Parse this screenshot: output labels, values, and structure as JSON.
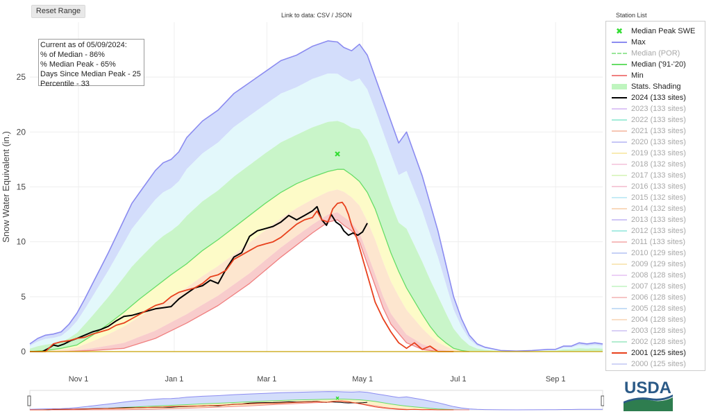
{
  "controls": {
    "reset_label": "Reset Range",
    "data_link": "Link to data: CSV / JSON"
  },
  "stats": {
    "line1": "Current as of 05/09/2024:",
    "line2": "% of Median - 86%",
    "line3": "% Median Peak - 65%",
    "line4": "Days Since Median Peak - 25",
    "line5": "Percentile - 33"
  },
  "legend": {
    "title": "Station List",
    "items": [
      {
        "label": "Median Peak SWE",
        "color": "#33dd33",
        "style": "marker",
        "active": true
      },
      {
        "label": "Max",
        "color": "#8b8bf0",
        "style": "line",
        "active": true
      },
      {
        "label": "Median (POR)",
        "color": "#99e699",
        "style": "dash",
        "active": false
      },
      {
        "label": "Median ('91-'20)",
        "color": "#66dd66",
        "style": "line",
        "active": true
      },
      {
        "label": "Min",
        "color": "#f08080",
        "style": "line",
        "active": true
      },
      {
        "label": "Stats. Shading",
        "color": "#bff5bf",
        "style": "fill",
        "active": true
      },
      {
        "label": "2024 (133 sites)",
        "color": "#000000",
        "style": "bold",
        "active": true
      },
      {
        "label": "2023 (133 sites)",
        "color": "#c8a0f0",
        "style": "line",
        "active": false
      },
      {
        "label": "2022 (133 sites)",
        "color": "#66e0c0",
        "style": "line",
        "active": false
      },
      {
        "label": "2021 (133 sites)",
        "color": "#f0a080",
        "style": "line",
        "active": false
      },
      {
        "label": "2020 (133 sites)",
        "color": "#a0a0f0",
        "style": "line",
        "active": false
      },
      {
        "label": "2019 (133 sites)",
        "color": "#f5e080",
        "style": "line",
        "active": false
      },
      {
        "label": "2018 (132 sites)",
        "color": "#f0b0d0",
        "style": "line",
        "active": false
      },
      {
        "label": "2017 (133 sites)",
        "color": "#c8f0a0",
        "style": "line",
        "active": false
      },
      {
        "label": "2016 (133 sites)",
        "color": "#f0a8c0",
        "style": "line",
        "active": false
      },
      {
        "label": "2015 (132 sites)",
        "color": "#a0e0f0",
        "style": "line",
        "active": false
      },
      {
        "label": "2014 (132 sites)",
        "color": "#f5c090",
        "style": "line",
        "active": false
      },
      {
        "label": "2013 (133 sites)",
        "color": "#b0a0f0",
        "style": "line",
        "active": false
      },
      {
        "label": "2012 (133 sites)",
        "color": "#70e0d0",
        "style": "line",
        "active": false
      },
      {
        "label": "2011 (133 sites)",
        "color": "#f09090",
        "style": "line",
        "active": false
      },
      {
        "label": "2010 (129 sites)",
        "color": "#a0b0f0",
        "style": "line",
        "active": false
      },
      {
        "label": "2009 (129 sites)",
        "color": "#f5d890",
        "style": "line",
        "active": false
      },
      {
        "label": "2008 (128 sites)",
        "color": "#e0b0f0",
        "style": "line",
        "active": false
      },
      {
        "label": "2007 (128 sites)",
        "color": "#b0f0b0",
        "style": "line",
        "active": false
      },
      {
        "label": "2006 (128 sites)",
        "color": "#f0a0a0",
        "style": "line",
        "active": false
      },
      {
        "label": "2005 (128 sites)",
        "color": "#a0c8f0",
        "style": "line",
        "active": false
      },
      {
        "label": "2004 (128 sites)",
        "color": "#f5c8a0",
        "style": "line",
        "active": false
      },
      {
        "label": "2003 (128 sites)",
        "color": "#c0b0f0",
        "style": "line",
        "active": false
      },
      {
        "label": "2002 (128 sites)",
        "color": "#80e0b0",
        "style": "line",
        "active": false
      },
      {
        "label": "2001 (125 sites)",
        "color": "#e8401c",
        "style": "bold",
        "active": true
      },
      {
        "label": "2000 (125 sites)",
        "color": "#b0b8f0",
        "style": "line",
        "active": false
      }
    ]
  },
  "chart_data": {
    "type": "line",
    "ylabel": "Snow Water Equivalent (in.)",
    "ylim": [
      0,
      30
    ],
    "yticks": [
      0,
      5,
      10,
      15,
      20,
      25
    ],
    "xlim_day": [
      0,
      365
    ],
    "x_ticks": [
      {
        "day": 31,
        "label": "Nov 1"
      },
      {
        "day": 92,
        "label": "Jan 1"
      },
      {
        "day": 151,
        "label": "Mar 1"
      },
      {
        "day": 212,
        "label": "May 1"
      },
      {
        "day": 273,
        "label": "Jul 1"
      },
      {
        "day": 335,
        "label": "Sep 1"
      }
    ],
    "x_unit": "day of water year (Oct 1 = 0)",
    "median_peak": {
      "day": 196,
      "swe": 18.0,
      "color": "#33dd33"
    },
    "series": [
      {
        "name": "Max",
        "color": "#8b8bf0",
        "x": [
          0,
          5,
          10,
          15,
          20,
          25,
          30,
          35,
          40,
          45,
          50,
          55,
          60,
          65,
          70,
          75,
          80,
          85,
          90,
          95,
          100,
          110,
          120,
          130,
          140,
          150,
          160,
          170,
          180,
          190,
          196,
          200,
          205,
          210,
          215,
          220,
          225,
          230,
          235,
          240,
          245,
          250,
          255,
          260,
          265,
          270,
          275,
          280,
          285,
          290,
          300,
          310,
          320,
          330,
          335,
          340,
          345,
          350,
          355,
          360,
          365
        ],
        "y": [
          0.7,
          1.2,
          1.5,
          1.6,
          1.8,
          2.5,
          3.5,
          4.8,
          6.2,
          7.6,
          9.0,
          10.5,
          12,
          13.5,
          14.5,
          15.5,
          16.5,
          17.2,
          17.5,
          18.2,
          19.5,
          21.0,
          22.0,
          23.5,
          24.5,
          25.5,
          26.5,
          27.0,
          27.8,
          28.3,
          28.2,
          27.7,
          27.4,
          28.0,
          27.0,
          25.0,
          23.0,
          21.0,
          19.0,
          20.0,
          18.0,
          16.0,
          13.5,
          11.0,
          8.0,
          5.0,
          3.0,
          1.5,
          0.7,
          0.4,
          0.1,
          0.05,
          0.1,
          0.2,
          0.2,
          0.5,
          0.5,
          0.8,
          0.7,
          0.8,
          0.7
        ]
      },
      {
        "name": "Median ('91-'20)",
        "color": "#66dd66",
        "x": [
          0,
          10,
          20,
          30,
          40,
          50,
          60,
          70,
          80,
          90,
          100,
          110,
          120,
          130,
          140,
          150,
          160,
          170,
          180,
          190,
          196,
          200,
          205,
          210,
          215,
          220,
          225,
          230,
          235,
          240,
          245,
          250,
          255,
          260,
          265,
          270,
          275,
          280
        ],
        "y": [
          0,
          0.1,
          0.3,
          0.6,
          1.5,
          2.5,
          3.6,
          4.8,
          5.9,
          7.0,
          8.0,
          9.2,
          10.2,
          11.3,
          12.4,
          13.5,
          14.5,
          15.3,
          15.9,
          16.4,
          16.6,
          16.6,
          16.1,
          15.5,
          14.5,
          13.0,
          11.0,
          9.0,
          7.3,
          5.8,
          4.6,
          3.4,
          2.3,
          1.4,
          0.8,
          0.3,
          0.1,
          0
        ]
      },
      {
        "name": "Min",
        "color": "#f08080",
        "x": [
          0,
          20,
          40,
          60,
          80,
          100,
          120,
          140,
          160,
          180,
          190,
          196,
          200,
          205,
          210,
          215,
          220,
          225,
          230,
          240,
          250,
          260,
          280
        ],
        "y": [
          0,
          0,
          0.1,
          0.3,
          1.2,
          2.6,
          4.2,
          6.2,
          8.6,
          10.8,
          11.8,
          12.0,
          11.5,
          11.0,
          10.0,
          8.0,
          6.0,
          4.0,
          2.5,
          0.8,
          0.2,
          0,
          0
        ]
      },
      {
        "name": "2024 (133 sites)",
        "color": "#000000",
        "x": [
          0,
          8,
          12,
          15,
          18,
          22,
          26,
          30,
          35,
          40,
          45,
          50,
          55,
          60,
          65,
          70,
          75,
          80,
          85,
          90,
          95,
          100,
          105,
          110,
          115,
          120,
          125,
          130,
          135,
          140,
          145,
          150,
          155,
          160,
          165,
          170,
          175,
          180,
          183,
          186,
          189,
          192,
          195,
          198,
          200,
          203,
          206,
          209,
          212,
          215
        ],
        "y": [
          0,
          0,
          0.3,
          0.6,
          0.5,
          0.7,
          1.0,
          1.2,
          1.5,
          1.8,
          2.0,
          2.3,
          2.8,
          3.2,
          3.3,
          3.5,
          3.7,
          3.9,
          4.0,
          4.1,
          4.8,
          5.3,
          5.8,
          6.0,
          6.5,
          6.2,
          7.5,
          8.6,
          9.0,
          10.5,
          11.0,
          11.2,
          11.4,
          11.8,
          12.4,
          12.0,
          12.4,
          12.8,
          13.2,
          12.0,
          11.5,
          12.5,
          11.8,
          11.5,
          11.0,
          10.6,
          10.8,
          10.6,
          10.9,
          11.7
        ]
      },
      {
        "name": "2001 (125 sites)",
        "color": "#e8401c",
        "x": [
          0,
          10,
          15,
          20,
          25,
          30,
          35,
          40,
          45,
          50,
          55,
          60,
          65,
          70,
          75,
          80,
          85,
          90,
          95,
          100,
          105,
          110,
          115,
          120,
          125,
          130,
          135,
          140,
          145,
          150,
          155,
          160,
          165,
          170,
          175,
          180,
          183,
          186,
          190,
          193,
          196,
          199,
          201,
          203,
          205,
          208,
          211,
          214,
          217,
          220,
          225,
          230,
          235,
          240,
          245,
          250,
          255,
          260,
          270
        ],
        "y": [
          0,
          0,
          0.7,
          0.9,
          1.0,
          1.2,
          1.3,
          1.6,
          1.8,
          2.0,
          2.4,
          2.6,
          3.0,
          3.4,
          3.8,
          4.2,
          4.4,
          5.0,
          5.4,
          5.6,
          5.8,
          6.2,
          6.8,
          7.0,
          7.4,
          8.4,
          8.8,
          9.2,
          9.6,
          9.8,
          10.0,
          10.4,
          11.0,
          11.6,
          12.0,
          12.2,
          12.8,
          12.0,
          11.8,
          13.0,
          13.5,
          13.6,
          13.2,
          12.5,
          11.5,
          10.5,
          9.0,
          7.5,
          6.0,
          4.5,
          3.0,
          1.8,
          0.8,
          0.3,
          0.8,
          0.2,
          0.5,
          0,
          0
        ]
      }
    ]
  }
}
